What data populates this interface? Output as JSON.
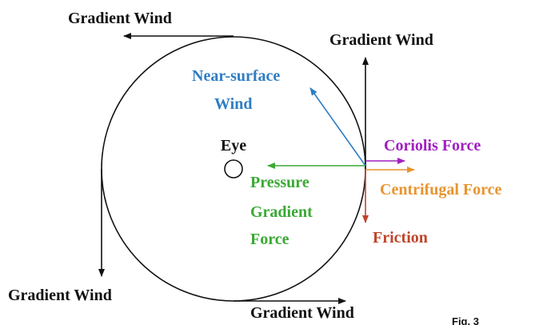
{
  "labels": {
    "gradient_wind_top": "Gradient Wind",
    "gradient_wind_right": "Gradient Wind",
    "gradient_wind_left": "Gradient Wind",
    "gradient_wind_bottom": "Gradient Wind",
    "near_surface_wind": [
      "Near-surface",
      "Wind"
    ],
    "eye": "Eye",
    "pressure_gradient_force": [
      "Pressure",
      "Gradient",
      "Force"
    ],
    "coriolis_force": "Coriolis Force",
    "centrifugal_force": "Centrifugal Force",
    "friction": "Friction",
    "figure": "Fig. 3"
  }
}
